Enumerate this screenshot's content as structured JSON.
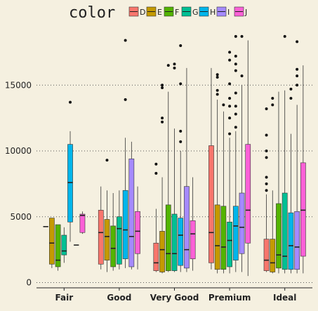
{
  "chart_data": {
    "type": "box",
    "title": "",
    "xlabel": "",
    "ylabel": "",
    "categories": [
      "Fair",
      "Good",
      "Very Good",
      "Premium",
      "Ideal"
    ],
    "ylim": [
      -400,
      19600
    ],
    "yticks": [
      0,
      5000,
      10000,
      15000
    ],
    "ytick_labels": [
      "0",
      "5000",
      "10000",
      "15000"
    ],
    "grid": "horizontal dotted",
    "legend": {
      "title": "color",
      "position": "top",
      "entries": [
        "D",
        "E",
        "F",
        "G",
        "H",
        "I",
        "J"
      ]
    },
    "series_colors": {
      "D": "#F8766D",
      "E": "#C49A00",
      "F": "#53B400",
      "G": "#00C094",
      "H": "#00B6EB",
      "I": "#A58AFF",
      "J": "#FB61D7"
    },
    "boxes": {
      "Fair": {
        "D": {
          "whisker_low": 4250,
          "q1": 4250,
          "median": 4250,
          "q3": 4250,
          "whisker_high": 4250,
          "outliers": []
        },
        "E": {
          "whisker_low": 1100,
          "q1": 1400,
          "median": 3000,
          "q3": 4900,
          "whisker_high": 4900,
          "outliers": []
        },
        "F": {
          "whisker_low": 900,
          "q1": 1200,
          "median": 1700,
          "q3": 4400,
          "whisker_high": 4400,
          "outliers": []
        },
        "G": {
          "whisker_low": 1500,
          "q1": 2100,
          "median": 2400,
          "q3": 3600,
          "whisker_high": 4200,
          "outliers": []
        },
        "H": {
          "whisker_low": 3100,
          "q1": 4600,
          "median": 7600,
          "q3": 10500,
          "whisker_high": 11500,
          "outliers": [
            13700
          ]
        },
        "I": {
          "whisker_low": 2850,
          "q1": 2850,
          "median": 2850,
          "q3": 2850,
          "whisker_high": 2850,
          "outliers": []
        },
        "J": {
          "whisker_low": 3700,
          "q1": 3800,
          "median": 5100,
          "q3": 5200,
          "whisker_high": 5400,
          "outliers": []
        }
      },
      "Good": {
        "D": {
          "whisker_low": 1000,
          "q1": 1400,
          "median": 3800,
          "q3": 5500,
          "whisker_high": 7300,
          "outliers": []
        },
        "E": {
          "whisker_low": 800,
          "q1": 1700,
          "median": 3500,
          "q3": 4800,
          "whisker_high": 7000,
          "outliers": [
            9300
          ]
        },
        "F": {
          "whisker_low": 900,
          "q1": 1200,
          "median": 2600,
          "q3": 4300,
          "whisker_high": 6800,
          "outliers": []
        },
        "G": {
          "whisker_low": 1000,
          "q1": 1400,
          "median": 4100,
          "q3": 5000,
          "whisker_high": 7000,
          "outliers": []
        },
        "H": {
          "whisker_low": 1100,
          "q1": 1800,
          "median": 4000,
          "q3": 7000,
          "whisker_high": 11000,
          "outliers": [
            13900,
            18400
          ]
        },
        "I": {
          "whisker_low": 1000,
          "q1": 1200,
          "median": 3500,
          "q3": 9400,
          "whisker_high": 10700,
          "outliers": []
        },
        "J": {
          "whisker_low": 1000,
          "q1": 2200,
          "median": 3900,
          "q3": 5400,
          "whisker_high": 7300,
          "outliers": []
        }
      },
      "Very Good": {
        "D": {
          "whisker_low": 800,
          "q1": 900,
          "median": 1500,
          "q3": 3000,
          "whisker_high": 5600,
          "outliers": [
            8300,
            9000
          ]
        },
        "E": {
          "whisker_low": 700,
          "q1": 800,
          "median": 2500,
          "q3": 3900,
          "whisker_high": 8000,
          "outliers": [
            12200,
            12500,
            14800,
            15000
          ]
        },
        "F": {
          "whisker_low": 800,
          "q1": 900,
          "median": 2200,
          "q3": 5900,
          "whisker_high": 14500,
          "outliers": [
            16500
          ]
        },
        "G": {
          "whisker_low": 800,
          "q1": 900,
          "median": 2200,
          "q3": 5200,
          "whisker_high": 11700,
          "outliers": [
            16300,
            16600
          ]
        },
        "H": {
          "whisker_low": 800,
          "q1": 1300,
          "median": 3600,
          "q3": 4900,
          "whisker_high": 10000,
          "outliers": [
            10700,
            11500,
            15100,
            18000
          ]
        },
        "I": {
          "whisker_low": 800,
          "q1": 1100,
          "median": 2500,
          "q3": 7300,
          "whisker_high": 16300,
          "outliers": []
        },
        "J": {
          "whisker_low": 900,
          "q1": 1800,
          "median": 3700,
          "q3": 4700,
          "whisker_high": 8000,
          "outliers": []
        }
      },
      "Premium": {
        "D": {
          "whisker_low": 1000,
          "q1": 1500,
          "median": 3800,
          "q3": 10400,
          "whisker_high": 16300,
          "outliers": []
        },
        "E": {
          "whisker_low": 700,
          "q1": 1000,
          "median": 2800,
          "q3": 5900,
          "whisker_high": 13900,
          "outliers": [
            14300,
            14600,
            15600,
            15800
          ]
        },
        "F": {
          "whisker_low": 700,
          "q1": 1000,
          "median": 2700,
          "q3": 5800,
          "whisker_high": 13000,
          "outliers": [
            13500
          ]
        },
        "G": {
          "whisker_low": 700,
          "q1": 1200,
          "median": 3200,
          "q3": 4600,
          "whisker_high": 11000,
          "outliers": [
            11300,
            12500,
            13400,
            14000,
            15100,
            16900,
            17500
          ]
        },
        "H": {
          "whisker_low": 800,
          "q1": 1700,
          "median": 4300,
          "q3": 5800,
          "whisker_high": 11500,
          "outliers": [
            11800,
            12800,
            13400,
            14400,
            16100,
            16600,
            17200,
            18700
          ]
        },
        "I": {
          "whisker_low": 800,
          "q1": 2200,
          "median": 4200,
          "q3": 6800,
          "whisker_high": 15000,
          "outliers": [
            15700,
            18700
          ]
        },
        "J": {
          "whisker_low": 500,
          "q1": 3000,
          "median": 5500,
          "q3": 10500,
          "whisker_high": 18400,
          "outliers": []
        }
      },
      "Ideal": {
        "D": {
          "whisker_low": 800,
          "q1": 900,
          "median": 1700,
          "q3": 3300,
          "whisker_high": 6700,
          "outliers": [
            7000,
            7500,
            8000,
            9500,
            10000,
            11200,
            13200
          ]
        },
        "E": {
          "whisker_low": 700,
          "q1": 800,
          "median": 1500,
          "q3": 3300,
          "whisker_high": 7000,
          "outliers": [
            13500,
            14000
          ]
        },
        "F": {
          "whisker_low": 700,
          "q1": 1100,
          "median": 2100,
          "q3": 6000,
          "whisker_high": 14500,
          "outliers": []
        },
        "G": {
          "whisker_low": 700,
          "q1": 1000,
          "median": 2000,
          "q3": 6800,
          "whisker_high": 14600,
          "outliers": [
            18700
          ]
        },
        "H": {
          "whisker_low": 700,
          "q1": 1000,
          "median": 2800,
          "q3": 5300,
          "whisker_high": 11300,
          "outliers": [
            14000,
            14700
          ]
        },
        "I": {
          "whisker_low": 700,
          "q1": 1000,
          "median": 2700,
          "q3": 5400,
          "whisker_high": 13500,
          "outliers": [
            15000,
            15700,
            16200,
            18300
          ]
        },
        "J": {
          "whisker_low": 700,
          "q1": 2000,
          "median": 5500,
          "q3": 9100,
          "whisker_high": 16500,
          "outliers": []
        }
      }
    }
  }
}
